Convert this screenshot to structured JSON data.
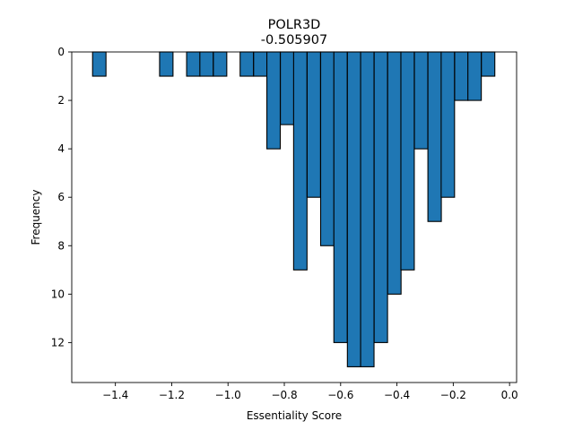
{
  "chart_data": {
    "type": "bar",
    "title": "POLR3D",
    "subtitle": "-0.505907",
    "xlabel": "Essentiality Score",
    "ylabel": "Frequency",
    "xlim": [
      -1.555,
      0.025
    ],
    "ylim": [
      0,
      13.65
    ],
    "y_inverted": true,
    "x_ticks": [
      -1.4,
      -1.2,
      -1.0,
      -0.8,
      -0.6,
      -0.4,
      -0.2,
      0.0
    ],
    "x_tick_labels": [
      "−1.4",
      "−1.2",
      "−1.0",
      "−0.8",
      "−0.6",
      "−0.4",
      "−0.2",
      "0.0"
    ],
    "y_ticks": [
      0,
      2,
      4,
      6,
      8,
      10,
      12
    ],
    "y_tick_labels": [
      "0",
      "2",
      "4",
      "6",
      "8",
      "10",
      "12"
    ],
    "bin_width": 0.0476,
    "bins": [
      {
        "left": -1.481,
        "count": 1
      },
      {
        "left": -1.243,
        "count": 1
      },
      {
        "left": -1.147,
        "count": 1
      },
      {
        "left": -1.1,
        "count": 1
      },
      {
        "left": -1.052,
        "count": 1
      },
      {
        "left": -0.957,
        "count": 1
      },
      {
        "left": -0.909,
        "count": 1
      },
      {
        "left": -0.862,
        "count": 4
      },
      {
        "left": -0.814,
        "count": 3
      },
      {
        "left": -0.767,
        "count": 9
      },
      {
        "left": -0.719,
        "count": 6
      },
      {
        "left": -0.671,
        "count": 8
      },
      {
        "left": -0.624,
        "count": 12
      },
      {
        "left": -0.576,
        "count": 13
      },
      {
        "left": -0.529,
        "count": 13
      },
      {
        "left": -0.481,
        "count": 12
      },
      {
        "left": -0.433,
        "count": 10
      },
      {
        "left": -0.386,
        "count": 9
      },
      {
        "left": -0.338,
        "count": 4
      },
      {
        "left": -0.29,
        "count": 7
      },
      {
        "left": -0.243,
        "count": 6
      },
      {
        "left": -0.195,
        "count": 2
      },
      {
        "left": -0.148,
        "count": 2
      },
      {
        "left": -0.1,
        "count": 1
      }
    ],
    "colors": {
      "bar_fill": "#1f77b4",
      "bar_edge": "#000000"
    },
    "grid": false,
    "legend": "none"
  }
}
